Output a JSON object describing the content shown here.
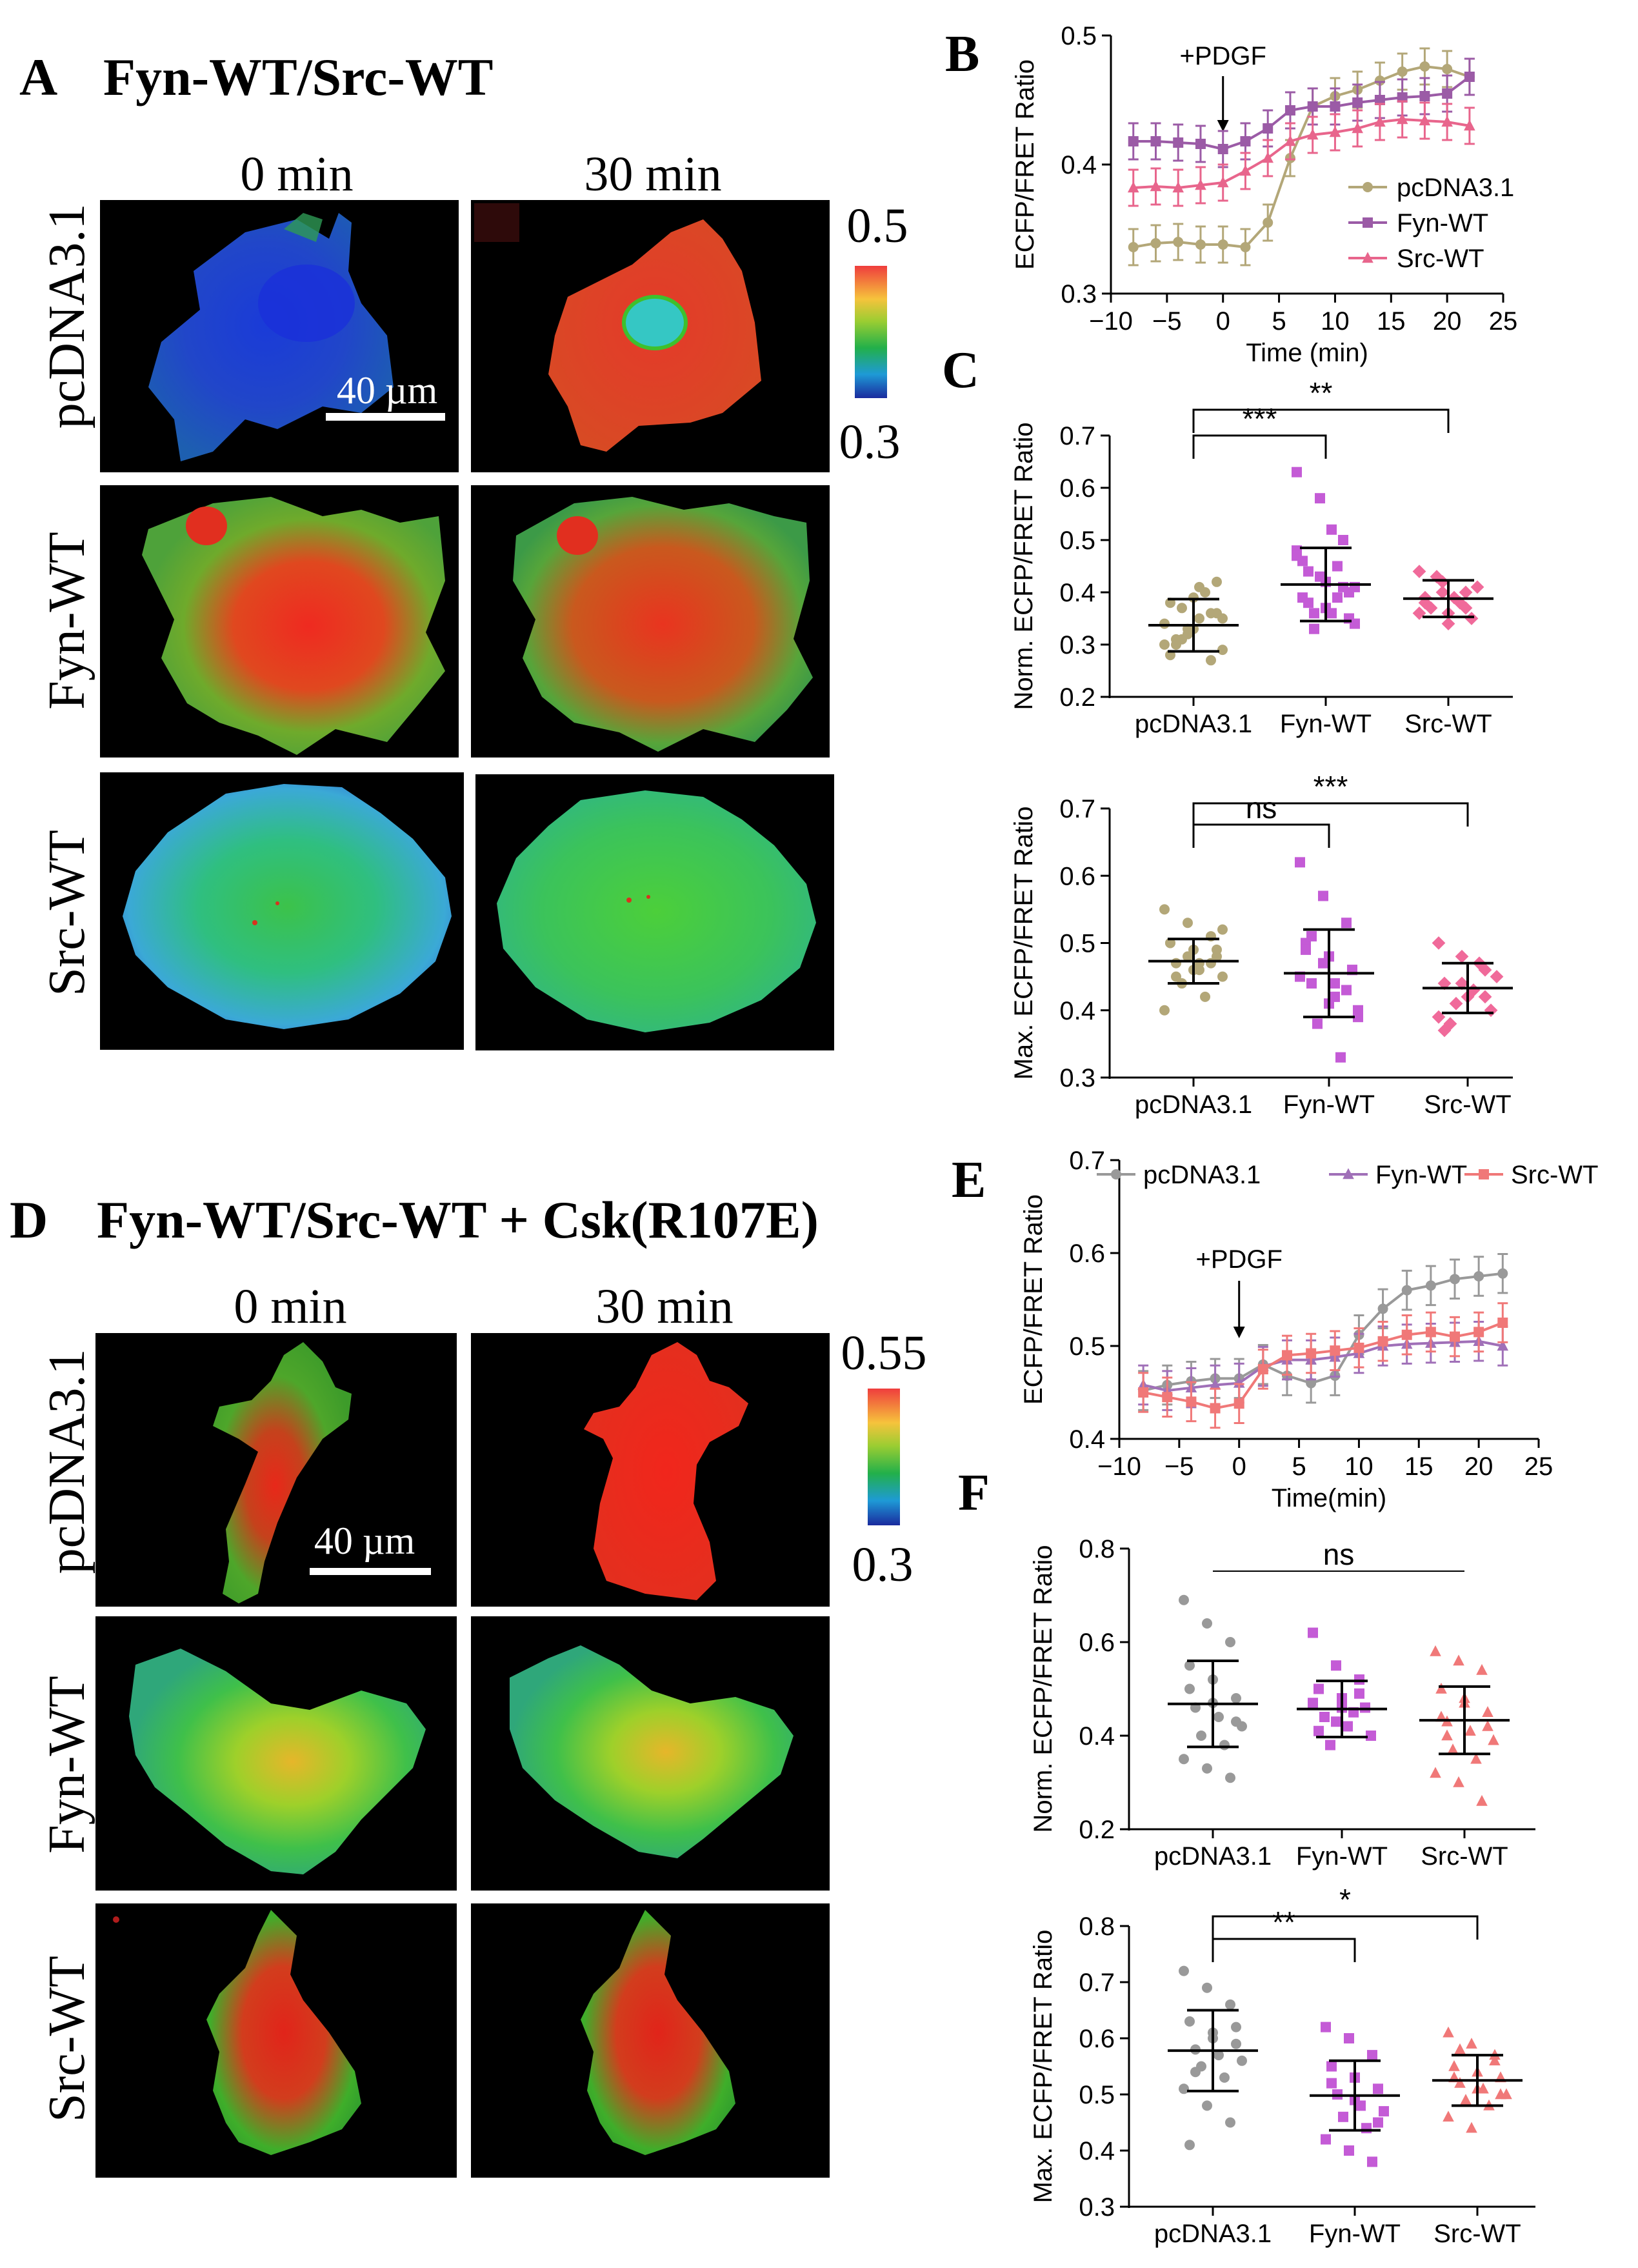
{
  "colors": {
    "pcdna": "#b3a778",
    "fyn": "#9b5ba6",
    "src": "#e8658c",
    "pcdna_e": "#999999",
    "fyn_e": "#a070b8",
    "src_e": "#f07878",
    "fyn_dots": "#c45bd6",
    "src_dots": "#f06a9a"
  },
  "panel_a": {
    "label": "A",
    "title": "Fyn-WT/Src-WT",
    "col_0": "0 min",
    "col_30": "30 min",
    "rows": [
      "pcDNA3.1",
      "Fyn-WT",
      "Src-WT"
    ],
    "scale_bar": "40 µm",
    "cbar_max": "0.5",
    "cbar_min": "0.3"
  },
  "panel_d": {
    "label": "D",
    "title": "Fyn-WT/Src-WT + Csk(R107E)",
    "col_0": "0 min",
    "col_30": "30 min",
    "rows": [
      "pcDNA3.1",
      "Fyn-WT",
      "Src-WT"
    ],
    "scale_bar": "40 µm",
    "cbar_max": "0.55",
    "cbar_min": "0.3"
  },
  "chart_data": [
    {
      "id": "B",
      "type": "line",
      "panel_label": "B",
      "xlabel": "Time (min)",
      "ylabel": "ECFP/FRET Ratio",
      "xlim": [
        -10,
        25
      ],
      "ylim": [
        0.3,
        0.5
      ],
      "xticks": [
        "−10",
        "−5",
        "0",
        "5",
        "10",
        "15",
        "20",
        "25"
      ],
      "yticks": [
        "0.3",
        "0.4",
        "0.5"
      ],
      "annotation": "+PDGF",
      "x": [
        -8,
        -6,
        -4,
        -2,
        0,
        2,
        4,
        6,
        8,
        10,
        12,
        14,
        16,
        18,
        20,
        22
      ],
      "series": [
        {
          "name": "pcDNA3.1",
          "values": [
            0.336,
            0.339,
            0.34,
            0.338,
            0.338,
            0.336,
            0.355,
            0.405,
            0.445,
            0.453,
            0.458,
            0.465,
            0.472,
            0.476,
            0.474,
            0.468
          ]
        },
        {
          "name": "Fyn-WT",
          "values": [
            0.418,
            0.418,
            0.417,
            0.416,
            0.412,
            0.418,
            0.428,
            0.442,
            0.445,
            0.445,
            0.448,
            0.45,
            0.452,
            0.453,
            0.455,
            0.468
          ]
        },
        {
          "name": "Src-WT",
          "values": [
            0.382,
            0.383,
            0.382,
            0.384,
            0.386,
            0.395,
            0.405,
            0.418,
            0.423,
            0.425,
            0.428,
            0.433,
            0.435,
            0.434,
            0.433,
            0.43
          ]
        }
      ]
    },
    {
      "id": "C1",
      "type": "scatter",
      "panel_label": "C",
      "ylabel": "Norm. ECFP/FRET Ratio",
      "categories": [
        "pcDNA3.1",
        "Fyn-WT",
        "Src-WT"
      ],
      "ylim": [
        0.2,
        0.7
      ],
      "yticks": [
        "0.2",
        "0.3",
        "0.4",
        "0.5",
        "0.6",
        "0.7"
      ],
      "means": [
        0.337,
        0.415,
        0.388
      ],
      "sds": [
        0.05,
        0.07,
        0.035
      ],
      "significance": [
        {
          "from": 0,
          "to": 1,
          "label": "***"
        },
        {
          "from": 0,
          "to": 2,
          "label": "**"
        }
      ],
      "points": [
        [
          0.3,
          0.33,
          0.36,
          0.28,
          0.39,
          0.42,
          0.31,
          0.35,
          0.29,
          0.37,
          0.4,
          0.34,
          0.32,
          0.27,
          0.38,
          0.33,
          0.36,
          0.3,
          0.41,
          0.35,
          0.31
        ],
        [
          0.63,
          0.58,
          0.5,
          0.46,
          0.42,
          0.4,
          0.38,
          0.36,
          0.34,
          0.33,
          0.45,
          0.48,
          0.43,
          0.41,
          0.39,
          0.37,
          0.35,
          0.44,
          0.52,
          0.41,
          0.36,
          0.39,
          0.47
        ],
        [
          0.44,
          0.42,
          0.4,
          0.38,
          0.36,
          0.35,
          0.37,
          0.39,
          0.41,
          0.43,
          0.38,
          0.36,
          0.4,
          0.37,
          0.39,
          0.34
        ]
      ]
    },
    {
      "id": "C2",
      "type": "scatter",
      "ylabel": "Max. ECFP/FRET Ratio",
      "categories": [
        "pcDNA3.1",
        "Fyn-WT",
        "Src-WT"
      ],
      "ylim": [
        0.3,
        0.7
      ],
      "yticks": [
        "0.3",
        "0.4",
        "0.5",
        "0.6",
        "0.7"
      ],
      "means": [
        0.473,
        0.455,
        0.433
      ],
      "sds": [
        0.033,
        0.065,
        0.037
      ],
      "significance": [
        {
          "from": 0,
          "to": 1,
          "label": "ns"
        },
        {
          "from": 0,
          "to": 2,
          "label": "***"
        }
      ],
      "points": [
        [
          0.55,
          0.53,
          0.51,
          0.5,
          0.49,
          0.48,
          0.47,
          0.46,
          0.45,
          0.44,
          0.42,
          0.4,
          0.48,
          0.47,
          0.5,
          0.46,
          0.49,
          0.45,
          0.47,
          0.52
        ],
        [
          0.62,
          0.57,
          0.53,
          0.5,
          0.48,
          0.46,
          0.44,
          0.42,
          0.4,
          0.38,
          0.33,
          0.45,
          0.47,
          0.43,
          0.49,
          0.41,
          0.46,
          0.51,
          0.44,
          0.39
        ],
        [
          0.5,
          0.48,
          0.46,
          0.44,
          0.42,
          0.4,
          0.38,
          0.43,
          0.45,
          0.41,
          0.47,
          0.39,
          0.44,
          0.42,
          0.37
        ]
      ]
    },
    {
      "id": "E",
      "type": "line",
      "panel_label": "E",
      "xlabel": "Time(min)",
      "ylabel": "ECFP/FRET Ratio",
      "xlim": [
        -10,
        25
      ],
      "ylim": [
        0.4,
        0.7
      ],
      "xticks": [
        "−10",
        "−5",
        "0",
        "5",
        "10",
        "15",
        "20",
        "25"
      ],
      "yticks": [
        "0.4",
        "0.5",
        "0.6",
        "0.7"
      ],
      "annotation": "+PDGF",
      "x": [
        -8,
        -6,
        -4,
        -2,
        0,
        2,
        4,
        6,
        8,
        10,
        12,
        14,
        16,
        18,
        20,
        22
      ],
      "series": [
        {
          "name": "pcDNA3.1",
          "values": [
            0.452,
            0.458,
            0.462,
            0.465,
            0.465,
            0.48,
            0.468,
            0.46,
            0.468,
            0.512,
            0.54,
            0.56,
            0.565,
            0.572,
            0.575,
            0.578
          ]
        },
        {
          "name": "Fyn-WT",
          "values": [
            0.458,
            0.452,
            0.455,
            0.458,
            0.46,
            0.478,
            0.485,
            0.485,
            0.488,
            0.492,
            0.5,
            0.502,
            0.503,
            0.504,
            0.505,
            0.5
          ]
        },
        {
          "name": "Src-WT",
          "values": [
            0.45,
            0.445,
            0.44,
            0.433,
            0.438,
            0.475,
            0.49,
            0.492,
            0.495,
            0.498,
            0.505,
            0.512,
            0.515,
            0.51,
            0.515,
            0.525
          ]
        }
      ]
    },
    {
      "id": "F1",
      "type": "scatter",
      "panel_label": "F",
      "ylabel": "Norm. ECFP/FRET Ratio",
      "categories": [
        "pcDNA3.1",
        "Fyn-WT",
        "Src-WT"
      ],
      "ylim": [
        0.2,
        0.8
      ],
      "yticks": [
        "0.2",
        "0.4",
        "0.6",
        "0.8"
      ],
      "means": [
        0.468,
        0.457,
        0.433
      ],
      "sds": [
        0.092,
        0.06,
        0.072
      ],
      "significance": [
        {
          "from": 0,
          "to": 2,
          "label": "ns"
        }
      ],
      "points": [
        [
          0.69,
          0.64,
          0.6,
          0.55,
          0.52,
          0.48,
          0.46,
          0.44,
          0.42,
          0.4,
          0.38,
          0.35,
          0.33,
          0.31,
          0.5,
          0.47,
          0.43
        ],
        [
          0.62,
          0.55,
          0.52,
          0.5,
          0.48,
          0.46,
          0.44,
          0.42,
          0.4,
          0.38,
          0.45,
          0.47,
          0.43,
          0.49,
          0.41,
          0.46
        ],
        [
          0.58,
          0.56,
          0.54,
          0.5,
          0.47,
          0.45,
          0.43,
          0.41,
          0.39,
          0.37,
          0.35,
          0.32,
          0.3,
          0.26,
          0.44,
          0.48,
          0.42,
          0.4
        ]
      ]
    },
    {
      "id": "F2",
      "type": "scatter",
      "ylabel": "Max. ECFP/FRET Ratio",
      "categories": [
        "pcDNA3.1",
        "Fyn-WT",
        "Src-WT"
      ],
      "ylim": [
        0.3,
        0.8
      ],
      "yticks": [
        "0.3",
        "0.4",
        "0.5",
        "0.6",
        "0.7",
        "0.8"
      ],
      "means": [
        0.578,
        0.498,
        0.525
      ],
      "sds": [
        0.072,
        0.062,
        0.045
      ],
      "significance": [
        {
          "from": 0,
          "to": 1,
          "label": "**"
        },
        {
          "from": 0,
          "to": 2,
          "label": "*"
        }
      ],
      "points": [
        [
          0.72,
          0.69,
          0.66,
          0.63,
          0.61,
          0.59,
          0.58,
          0.57,
          0.56,
          0.55,
          0.53,
          0.51,
          0.48,
          0.45,
          0.41,
          0.6,
          0.62,
          0.54
        ],
        [
          0.62,
          0.6,
          0.57,
          0.55,
          0.53,
          0.51,
          0.5,
          0.48,
          0.47,
          0.46,
          0.44,
          0.42,
          0.4,
          0.38,
          0.52,
          0.49,
          0.45
        ],
        [
          0.61,
          0.59,
          0.57,
          0.55,
          0.54,
          0.53,
          0.52,
          0.51,
          0.5,
          0.49,
          0.48,
          0.46,
          0.44,
          0.56,
          0.53,
          0.51,
          0.5,
          0.58
        ]
      ]
    }
  ]
}
